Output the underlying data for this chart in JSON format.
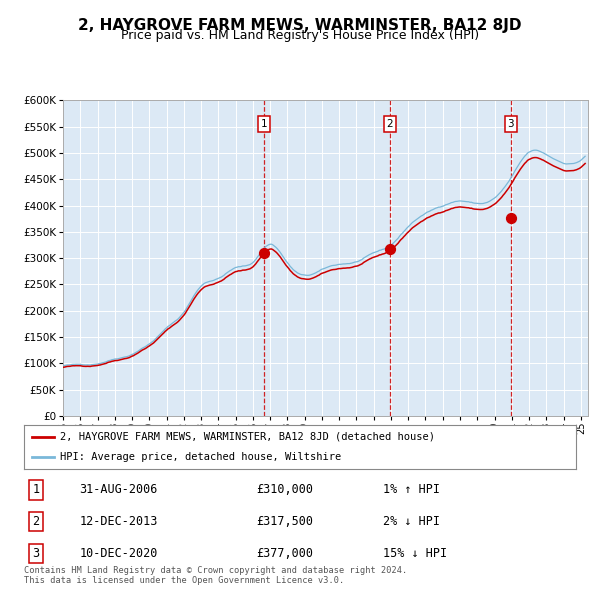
{
  "title": "2, HAYGROVE FARM MEWS, WARMINSTER, BA12 8JD",
  "subtitle": "Price paid vs. HM Land Registry's House Price Index (HPI)",
  "title_fontsize": 11,
  "subtitle_fontsize": 9,
  "hpi_color": "#7ab8d9",
  "price_color": "#cc0000",
  "bg_fill_color": "#dce9f5",
  "sale_points": [
    {
      "date": "2006-08-31",
      "price": 310000,
      "label": "1"
    },
    {
      "date": "2013-12-12",
      "price": 317500,
      "label": "2"
    },
    {
      "date": "2020-12-10",
      "price": 377000,
      "label": "3"
    }
  ],
  "legend_house": "2, HAYGROVE FARM MEWS, WARMINSTER, BA12 8JD (detached house)",
  "legend_hpi": "HPI: Average price, detached house, Wiltshire",
  "table_rows": [
    {
      "num": "1",
      "date": "31-AUG-2006",
      "price": "£310,000",
      "pct": "1% ↑ HPI"
    },
    {
      "num": "2",
      "date": "12-DEC-2013",
      "price": "£317,500",
      "pct": "2% ↓ HPI"
    },
    {
      "num": "3",
      "date": "10-DEC-2020",
      "price": "£377,000",
      "pct": "15% ↓ HPI"
    }
  ],
  "footer": "Contains HM Land Registry data © Crown copyright and database right 2024.\nThis data is licensed under the Open Government Licence v3.0.",
  "ylim": [
    0,
    600000
  ],
  "yticks": [
    0,
    50000,
    100000,
    150000,
    200000,
    250000,
    300000,
    350000,
    400000,
    450000,
    500000,
    550000,
    600000
  ]
}
